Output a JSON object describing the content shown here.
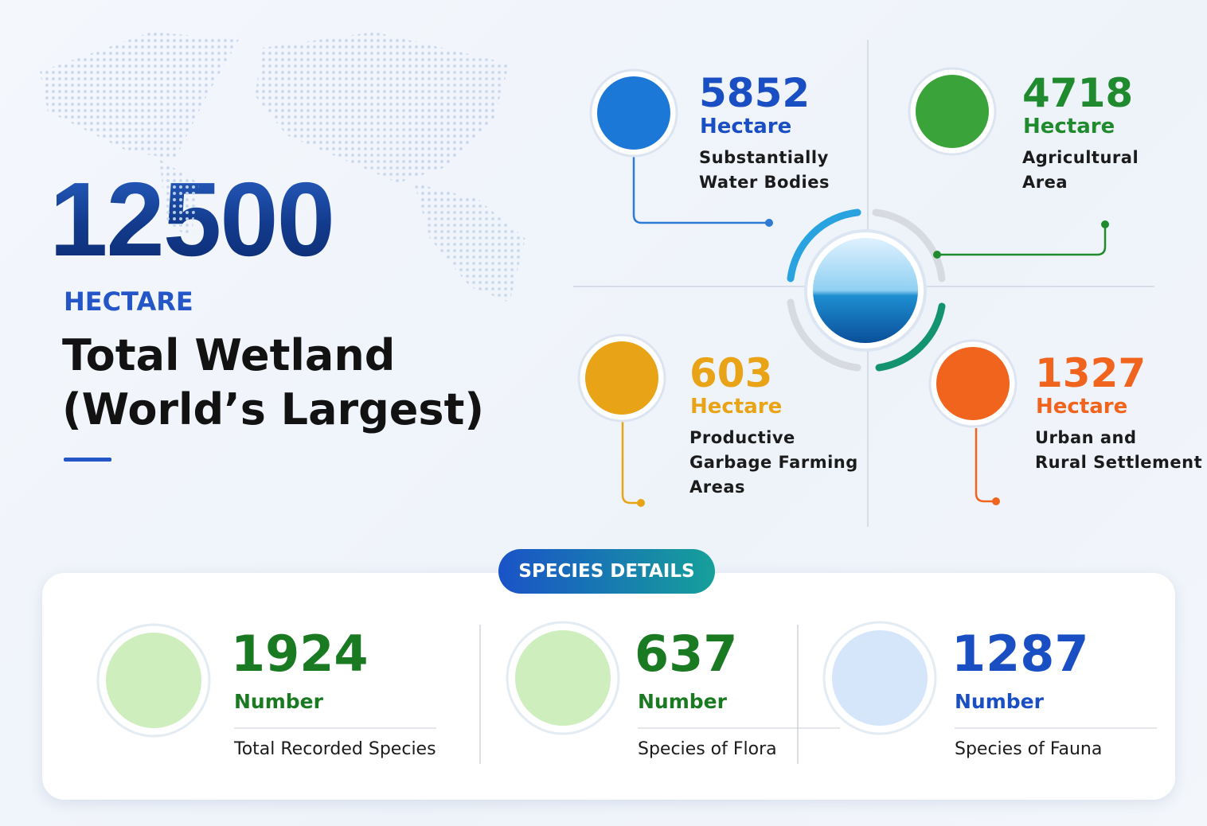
{
  "hero": {
    "value": 12500,
    "unit": "HECTARE",
    "title_lines": [
      "Total Wetland",
      "(World’s Largest)"
    ]
  },
  "land_use": [
    {
      "value": 5852,
      "unit": "Hectare",
      "label_lines": [
        "Substantially",
        "Water Bodies"
      ]
    },
    {
      "value": 4718,
      "unit": "Hectare",
      "label_lines": [
        "Agricultural",
        "Area"
      ]
    },
    {
      "value": 603,
      "unit": "Hectare",
      "label_lines": [
        "Productive",
        "Garbage Farming",
        "Areas"
      ]
    },
    {
      "value": 1327,
      "unit": "Hectare",
      "label_lines": [
        "Urban and",
        "Rural Settlement"
      ]
    }
  ],
  "species": {
    "badge": "SPECIES DETAILS",
    "items": [
      {
        "value": 1924,
        "unit": "Number",
        "label": "Total Recorded Species"
      },
      {
        "value": 637,
        "unit": "Number",
        "label": "Species of Flora"
      },
      {
        "value": 1287,
        "unit": "Number",
        "label": "Species of Fauna"
      }
    ]
  }
}
